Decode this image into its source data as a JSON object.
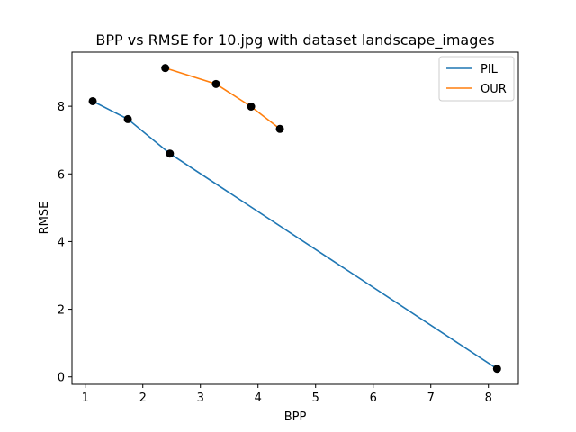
{
  "chart_data": {
    "type": "line",
    "title": "BPP vs RMSE for 10.jpg with dataset landscape_images",
    "xlabel": "BPP",
    "ylabel": "RMSE",
    "xlim": [
      0.77,
      8.52
    ],
    "ylim": [
      -0.22,
      9.6
    ],
    "xticks": [
      1,
      2,
      3,
      4,
      5,
      6,
      7,
      8
    ],
    "yticks": [
      0,
      2,
      4,
      6,
      8
    ],
    "grid": false,
    "legend_position": "top-right",
    "series": [
      {
        "name": "PIL",
        "color": "#1f77b4",
        "points": [
          {
            "x": 1.13,
            "y": 8.15
          },
          {
            "x": 1.74,
            "y": 7.62
          },
          {
            "x": 2.47,
            "y": 6.6
          },
          {
            "x": 8.15,
            "y": 0.24
          }
        ]
      },
      {
        "name": "OUR",
        "color": "#ff7f0e",
        "points": [
          {
            "x": 2.39,
            "y": 9.13
          },
          {
            "x": 3.27,
            "y": 8.66
          },
          {
            "x": 3.88,
            "y": 7.99
          },
          {
            "x": 4.38,
            "y": 7.33
          }
        ]
      }
    ],
    "marker_color": "#000000"
  }
}
